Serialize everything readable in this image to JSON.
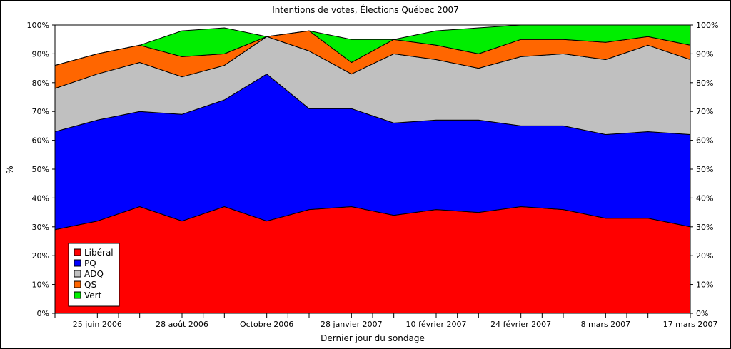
{
  "chart_data": {
    "type": "area",
    "stacked": true,
    "percent": true,
    "title": "Intentions de votes, Élections Québec 2007",
    "xlabel": "Dernier jour du sondage",
    "ylabel": "%",
    "ylim": [
      0,
      100
    ],
    "yticks": [
      "0%",
      "10%",
      "20%",
      "30%",
      "40%",
      "50%",
      "60%",
      "70%",
      "80%",
      "90%",
      "100%"
    ],
    "xtick_labels": [
      "25 juin 2006",
      "28 août 2006",
      "Octobre 2006",
      "28 janvier 2007",
      "10 février 2007",
      "24 février 2007",
      "8 mars 2007",
      "17 mars 2007"
    ],
    "legend_position": "bottom-left",
    "series": [
      {
        "name": "Libéral",
        "color": "#ff0000",
        "values": [
          29,
          32,
          37,
          32,
          37,
          32,
          36,
          37,
          34,
          36,
          35,
          37,
          36,
          33,
          33,
          30
        ]
      },
      {
        "name": "PQ",
        "color": "#0000ff",
        "values": [
          34,
          35,
          33,
          37,
          37,
          51,
          35,
          34,
          32,
          31,
          32,
          28,
          29,
          29,
          30,
          32
        ]
      },
      {
        "name": "ADQ",
        "color": "#c0c0c0",
        "values": [
          15,
          16,
          17,
          13,
          12,
          13,
          20,
          12,
          24,
          21,
          18,
          24,
          25,
          26,
          30,
          26
        ]
      },
      {
        "name": "QS",
        "color": "#ff6600",
        "values": [
          8,
          7,
          6,
          7,
          4,
          0,
          7,
          4,
          5,
          5,
          5,
          6,
          5,
          6,
          3,
          5
        ]
      },
      {
        "name": "Vert",
        "color": "#00ee00",
        "values": [
          0,
          0,
          0,
          9,
          9,
          0,
          0,
          8,
          0,
          5,
          9,
          5,
          5,
          6,
          4,
          7
        ]
      }
    ]
  }
}
